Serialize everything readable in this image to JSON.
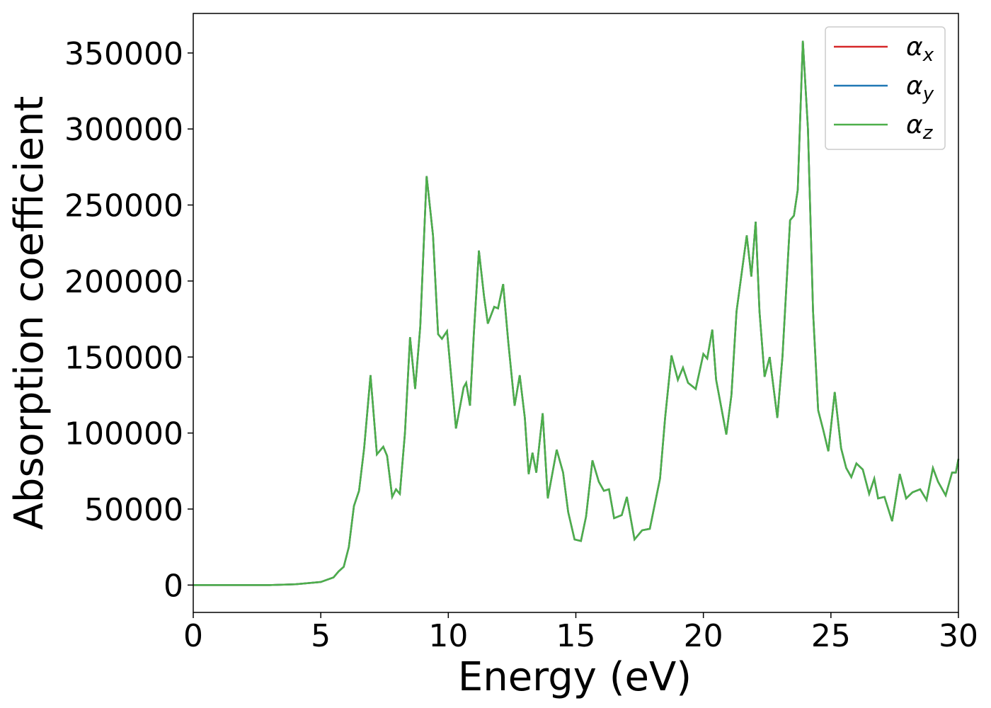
{
  "chart_data": {
    "type": "line",
    "xlabel": "Energy (eV)",
    "ylabel": "Absorption coefficient",
    "xlim": [
      0,
      30
    ],
    "xticks": [
      0,
      5,
      10,
      15,
      20,
      25,
      30
    ],
    "ylim": [
      -18000,
      376000
    ],
    "yticks": [
      0,
      50000,
      100000,
      150000,
      200000,
      250000,
      300000,
      350000
    ],
    "legend": "upper right",
    "grid": false,
    "x": [
      0,
      3,
      4,
      5,
      5.5,
      5.7,
      5.9,
      6.1,
      6.3,
      6.5,
      6.7,
      6.95,
      7.2,
      7.45,
      7.6,
      7.8,
      7.95,
      8.1,
      8.3,
      8.5,
      8.7,
      8.9,
      9.15,
      9.4,
      9.6,
      9.75,
      9.95,
      10.3,
      10.6,
      10.7,
      10.85,
      11.0,
      11.2,
      11.4,
      11.55,
      11.8,
      11.95,
      12.15,
      12.35,
      12.6,
      12.8,
      13.0,
      13.15,
      13.3,
      13.45,
      13.7,
      13.9,
      14.25,
      14.5,
      14.7,
      14.95,
      15.2,
      15.4,
      15.65,
      15.9,
      16.1,
      16.3,
      16.5,
      16.8,
      17.0,
      17.3,
      17.6,
      17.9,
      18.3,
      18.5,
      18.75,
      19.0,
      19.2,
      19.4,
      19.7,
      20.0,
      20.15,
      20.35,
      20.5,
      20.9,
      21.1,
      21.3,
      21.5,
      21.7,
      21.88,
      22.05,
      22.2,
      22.4,
      22.6,
      22.9,
      23.1,
      23.4,
      23.55,
      23.7,
      23.9,
      24.1,
      24.3,
      24.5,
      24.7,
      24.9,
      25.15,
      25.4,
      25.6,
      25.8,
      26.0,
      26.25,
      26.5,
      26.7,
      26.85,
      27.1,
      27.4,
      27.7,
      27.95,
      28.2,
      28.5,
      28.75,
      29.0,
      29.2,
      29.5,
      29.75,
      29.9,
      30
    ],
    "series": [
      {
        "name": "αx",
        "color": "#d62728",
        "values": [
          0,
          0,
          500,
          2000,
          5000,
          9000,
          12000,
          25000,
          52000,
          62000,
          90000,
          138000,
          86000,
          91000,
          85000,
          58000,
          63000,
          60000,
          100000,
          163000,
          129000,
          170000,
          269000,
          230000,
          165000,
          162000,
          167000,
          103000,
          130000,
          133000,
          118000,
          165000,
          220000,
          190000,
          172000,
          183000,
          182000,
          198000,
          160000,
          118000,
          138000,
          110000,
          73000,
          87000,
          74000,
          113000,
          57000,
          89000,
          74000,
          48000,
          30000,
          29000,
          45000,
          82000,
          68000,
          62000,
          63000,
          44000,
          46000,
          58000,
          30000,
          36000,
          37000,
          70000,
          110000,
          151000,
          135000,
          143000,
          133000,
          129000,
          152000,
          149000,
          168000,
          135000,
          99000,
          125000,
          180000,
          205000,
          230000,
          203000,
          239000,
          180000,
          137000,
          150000,
          110000,
          150000,
          240000,
          243000,
          260000,
          358000,
          300000,
          180000,
          115000,
          102000,
          88000,
          127000,
          90000,
          77000,
          71000,
          80000,
          76000,
          60000,
          70000,
          57000,
          58000,
          42000,
          73000,
          57000,
          61000,
          63000,
          56000,
          77000,
          68000,
          59000,
          74000,
          74000,
          83000
        ]
      },
      {
        "name": "αy",
        "color": "#1f77b4",
        "values": [
          0,
          0,
          500,
          2000,
          5000,
          9000,
          12000,
          25000,
          52000,
          62000,
          90000,
          138000,
          86000,
          91000,
          85000,
          58000,
          63000,
          60000,
          100000,
          163000,
          129000,
          170000,
          269000,
          230000,
          165000,
          162000,
          167000,
          103000,
          130000,
          133000,
          118000,
          165000,
          220000,
          190000,
          172000,
          183000,
          182000,
          198000,
          160000,
          118000,
          138000,
          110000,
          73000,
          87000,
          74000,
          113000,
          57000,
          89000,
          74000,
          48000,
          30000,
          29000,
          45000,
          82000,
          68000,
          62000,
          63000,
          44000,
          46000,
          58000,
          30000,
          36000,
          37000,
          70000,
          110000,
          151000,
          135000,
          143000,
          133000,
          129000,
          152000,
          149000,
          168000,
          135000,
          99000,
          125000,
          180000,
          205000,
          230000,
          203000,
          239000,
          180000,
          137000,
          150000,
          110000,
          150000,
          240000,
          243000,
          260000,
          358000,
          300000,
          180000,
          115000,
          102000,
          88000,
          127000,
          90000,
          77000,
          71000,
          80000,
          76000,
          60000,
          70000,
          57000,
          58000,
          42000,
          73000,
          57000,
          61000,
          63000,
          56000,
          77000,
          68000,
          59000,
          74000,
          74000,
          83000
        ]
      },
      {
        "name": "αz",
        "color": "#4daf4a",
        "values": [
          0,
          0,
          500,
          2000,
          5000,
          9000,
          12000,
          25000,
          52000,
          62000,
          90000,
          138000,
          86000,
          91000,
          85000,
          58000,
          63000,
          60000,
          100000,
          163000,
          129000,
          170000,
          269000,
          230000,
          165000,
          162000,
          167000,
          103000,
          130000,
          133000,
          118000,
          165000,
          220000,
          190000,
          172000,
          183000,
          182000,
          198000,
          160000,
          118000,
          138000,
          110000,
          73000,
          87000,
          74000,
          113000,
          57000,
          89000,
          74000,
          48000,
          30000,
          29000,
          45000,
          82000,
          68000,
          62000,
          63000,
          44000,
          46000,
          58000,
          30000,
          36000,
          37000,
          70000,
          110000,
          151000,
          135000,
          143000,
          133000,
          129000,
          152000,
          149000,
          168000,
          135000,
          99000,
          125000,
          180000,
          205000,
          230000,
          203000,
          239000,
          180000,
          137000,
          150000,
          110000,
          150000,
          240000,
          243000,
          260000,
          358000,
          300000,
          180000,
          115000,
          102000,
          88000,
          127000,
          90000,
          77000,
          71000,
          80000,
          76000,
          60000,
          70000,
          57000,
          58000,
          42000,
          73000,
          57000,
          61000,
          63000,
          56000,
          77000,
          68000,
          59000,
          74000,
          74000,
          83000
        ]
      }
    ]
  }
}
